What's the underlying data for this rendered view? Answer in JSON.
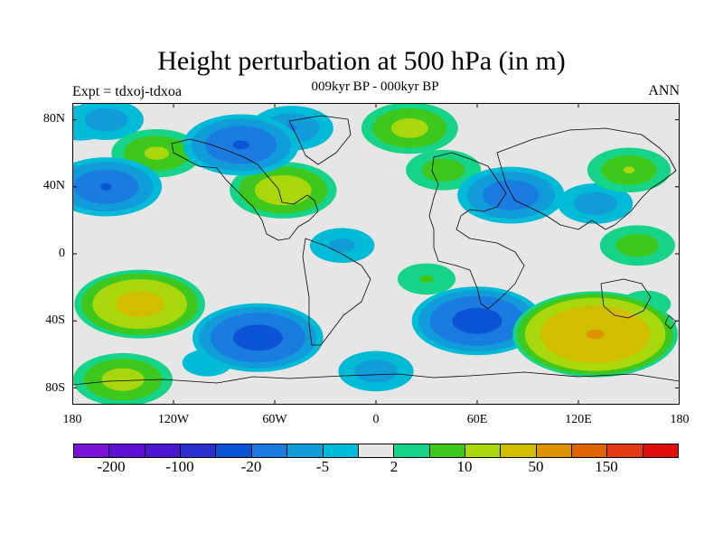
{
  "title": "Height perturbation at 500 hPa (in m)",
  "subtitle": "009kyr BP - 000kyr BP",
  "left_label": "Expt = tdxoj-tdxoa",
  "right_label": "ANN",
  "y_ticks": [
    "80N",
    "40N",
    "0",
    "40S",
    "80S"
  ],
  "x_ticks": [
    "180",
    "120W",
    "60W",
    "0",
    "60E",
    "120E",
    "180"
  ],
  "colors": {
    "background": "#e6e6e6",
    "colorbar": [
      "#7a12d8",
      "#5f0fd4",
      "#4a16cf",
      "#2a30d0",
      "#0b54d6",
      "#1a7be0",
      "#109cd8",
      "#00bbd8",
      "#e6e6e6",
      "#16d487",
      "#3ec71c",
      "#a8d70b",
      "#d1bd00",
      "#dd9300",
      "#e06400",
      "#e13a14",
      "#e00d0b"
    ]
  },
  "colorbar_labels": [
    "-200",
    "-100",
    "-20",
    "-5",
    "2",
    "10",
    "50",
    "150"
  ],
  "chart_data": {
    "type": "heatmap",
    "title": "Height perturbation at 500 hPa (in m)",
    "subtitle": "009kyr BP - 000kyr BP",
    "xlim": [
      -180,
      180
    ],
    "ylim": [
      -90,
      90
    ],
    "x_ticks": [
      -180,
      -120,
      -60,
      0,
      60,
      120,
      180
    ],
    "y_ticks": [
      80,
      40,
      0,
      -40,
      -80
    ],
    "levels": [
      -200,
      -100,
      -50,
      -20,
      -10,
      -5,
      -2,
      0,
      2,
      5,
      10,
      20,
      50,
      100,
      150,
      200
    ],
    "anomaly_centers": [
      {
        "lon": -130,
        "lat": 60,
        "value": 12
      },
      {
        "lon": -160,
        "lat": 40,
        "value": -20
      },
      {
        "lon": -160,
        "lat": 80,
        "value": -8
      },
      {
        "lon": -175,
        "lat": 78,
        "value": -6
      },
      {
        "lon": -80,
        "lat": 65,
        "value": -22
      },
      {
        "lon": -50,
        "lat": 75,
        "value": -10
      },
      {
        "lon": -55,
        "lat": 38,
        "value": 18
      },
      {
        "lon": -20,
        "lat": 5,
        "value": -6
      },
      {
        "lon": 20,
        "lat": 75,
        "value": 14
      },
      {
        "lon": 40,
        "lat": 50,
        "value": 8
      },
      {
        "lon": 80,
        "lat": 35,
        "value": -18
      },
      {
        "lon": 150,
        "lat": 50,
        "value": 10
      },
      {
        "lon": 130,
        "lat": 30,
        "value": -8
      },
      {
        "lon": 155,
        "lat": 5,
        "value": 8
      },
      {
        "lon": -140,
        "lat": -30,
        "value": 30
      },
      {
        "lon": -70,
        "lat": -50,
        "value": -30
      },
      {
        "lon": 30,
        "lat": -15,
        "value": 5
      },
      {
        "lon": 60,
        "lat": -40,
        "value": -30
      },
      {
        "lon": 130,
        "lat": -48,
        "value": 55
      },
      {
        "lon": -150,
        "lat": -75,
        "value": 15
      },
      {
        "lon": 0,
        "lat": -70,
        "value": -8
      },
      {
        "lon": 160,
        "lat": -30,
        "value": 4
      },
      {
        "lon": -100,
        "lat": -65,
        "value": -4
      }
    ]
  }
}
